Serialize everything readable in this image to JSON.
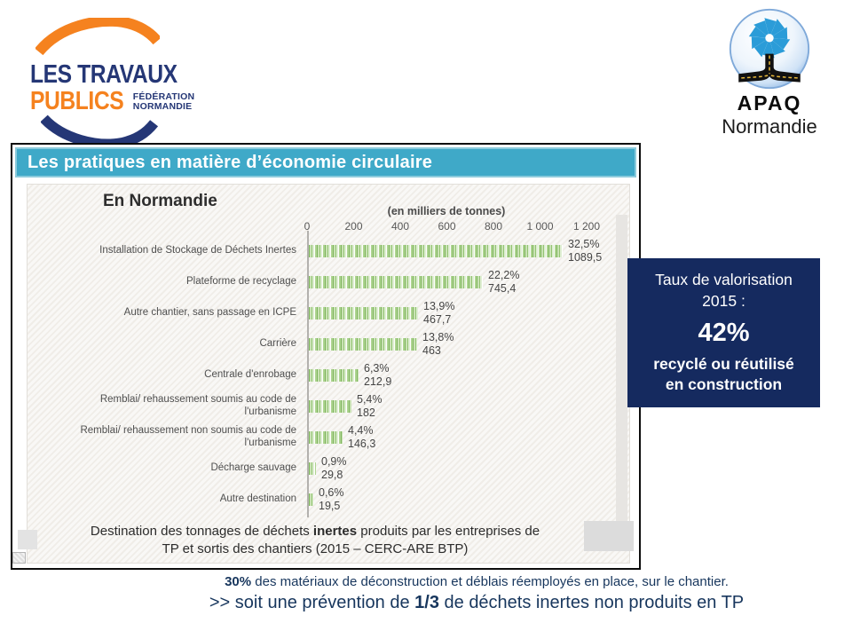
{
  "slide": {
    "tp_logo": {
      "line1": "LES TRAVAUX",
      "line2": "PUBLICS",
      "sub_line1": "FÉDÉRATION",
      "sub_line2": "NORMANDIE"
    },
    "apaq_logo": {
      "name": "APAQ",
      "region": "Normandie"
    },
    "panel": {
      "title": "Les pratiques en matière d’économie circulaire"
    },
    "callout": {
      "line1": "Taux de valorisation",
      "line2": "2015 :",
      "big": "42%",
      "line3": "recyclé ou réutilisé",
      "line4": "en construction"
    },
    "notes": {
      "line1_bold": "30%",
      "line1_rest": " des matériaux de déconstruction et déblais réemployés en place, sur le chantier.",
      "line2_prefix": ">> soit une prévention de ",
      "line2_bold": "1/3",
      "line2_suffix": " de déchets inertes non produits en TP"
    }
  },
  "chart_data": {
    "type": "bar",
    "orientation": "horizontal",
    "title": "En Normandie",
    "axis_title": "(en milliers de tonnes)",
    "x_ticks": [
      "0",
      "200",
      "400",
      "600",
      "800",
      "1 000",
      "1 200"
    ],
    "xlim": [
      0,
      1200
    ],
    "grid": false,
    "legend": "none",
    "categories": [
      "Installation de Stockage de Déchets Inertes",
      "Plateforme de recyclage",
      "Autre chantier, sans passage en ICPE",
      "Carrière",
      "Centrale d'enrobage",
      "Remblai/ rehaussement soumis au code de\nl'urbanisme",
      "Remblai/ rehaussement non soumis au code de\nl'urbanisme",
      "Décharge sauvage",
      "Autre destination"
    ],
    "values": [
      1089.5,
      745.4,
      467.7,
      463,
      212.9,
      182,
      146.3,
      29.8,
      19.5
    ],
    "percent_labels": [
      "32,5%",
      "22,2%",
      "13,9%",
      "13,8%",
      "6,3%",
      "5,4%",
      "4,4%",
      "0,9%",
      "0,6%"
    ],
    "value_labels": [
      "1089,5",
      "745,4",
      "467,7",
      "463",
      "212,9",
      "182",
      "146,3",
      "29,8",
      "19,5"
    ],
    "caption_line1_prefix": "Destination des tonnages de déchets ",
    "caption_line1_bold": "inertes",
    "caption_line1_suffix": " produits par les entreprises de",
    "caption_line2": "TP et sortis des chantiers (2015 – CERC-ARE BTP)"
  },
  "colors": {
    "header_teal": "#3fa9c8",
    "callout_navy": "#152a5f",
    "note_navy": "#17365d",
    "bar_green": "#a9d18e",
    "logo_navy": "#253776",
    "logo_orange": "#f5821f"
  }
}
